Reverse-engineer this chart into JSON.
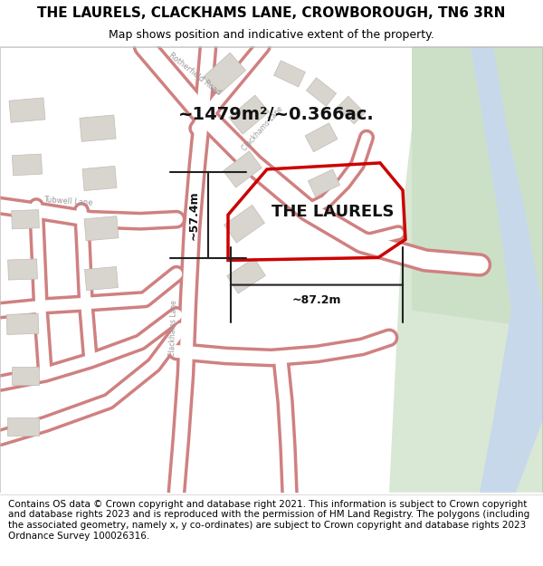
{
  "title": "THE LAURELS, CLACKHAMS LANE, CROWBOROUGH, TN6 3RN",
  "subtitle": "Map shows position and indicative extent of the property.",
  "footer": "Contains OS data © Crown copyright and database right 2021. This information is subject to Crown copyright and database rights 2023 and is reproduced with the permission of HM Land Registry. The polygons (including the associated geometry, namely x, y co-ordinates) are subject to Crown copyright and database rights 2023 Ordnance Survey 100026316.",
  "area_label": "~1479m²/~0.366ac.",
  "property_label": "THE LAURELS",
  "dim_width": "~87.2m",
  "dim_height": "~57.4m",
  "map_bg": "#f0ede8",
  "road_color": "#ffffff",
  "road_border": "#d08080",
  "plot_outline_color": "#cc0000",
  "building_color": "#d8d4ce",
  "building_edge": "#c0bcb6",
  "green_area": "#d8e8d4",
  "green_area2": "#cce0c8",
  "water_color": "#c8d8eb",
  "title_fontsize": 11,
  "subtitle_fontsize": 9,
  "footer_fontsize": 7.5,
  "label_fontsize": 14,
  "property_fontsize": 13,
  "dim_fontsize": 9,
  "road_label_fontsize": 6,
  "road_label_color": "#999999"
}
